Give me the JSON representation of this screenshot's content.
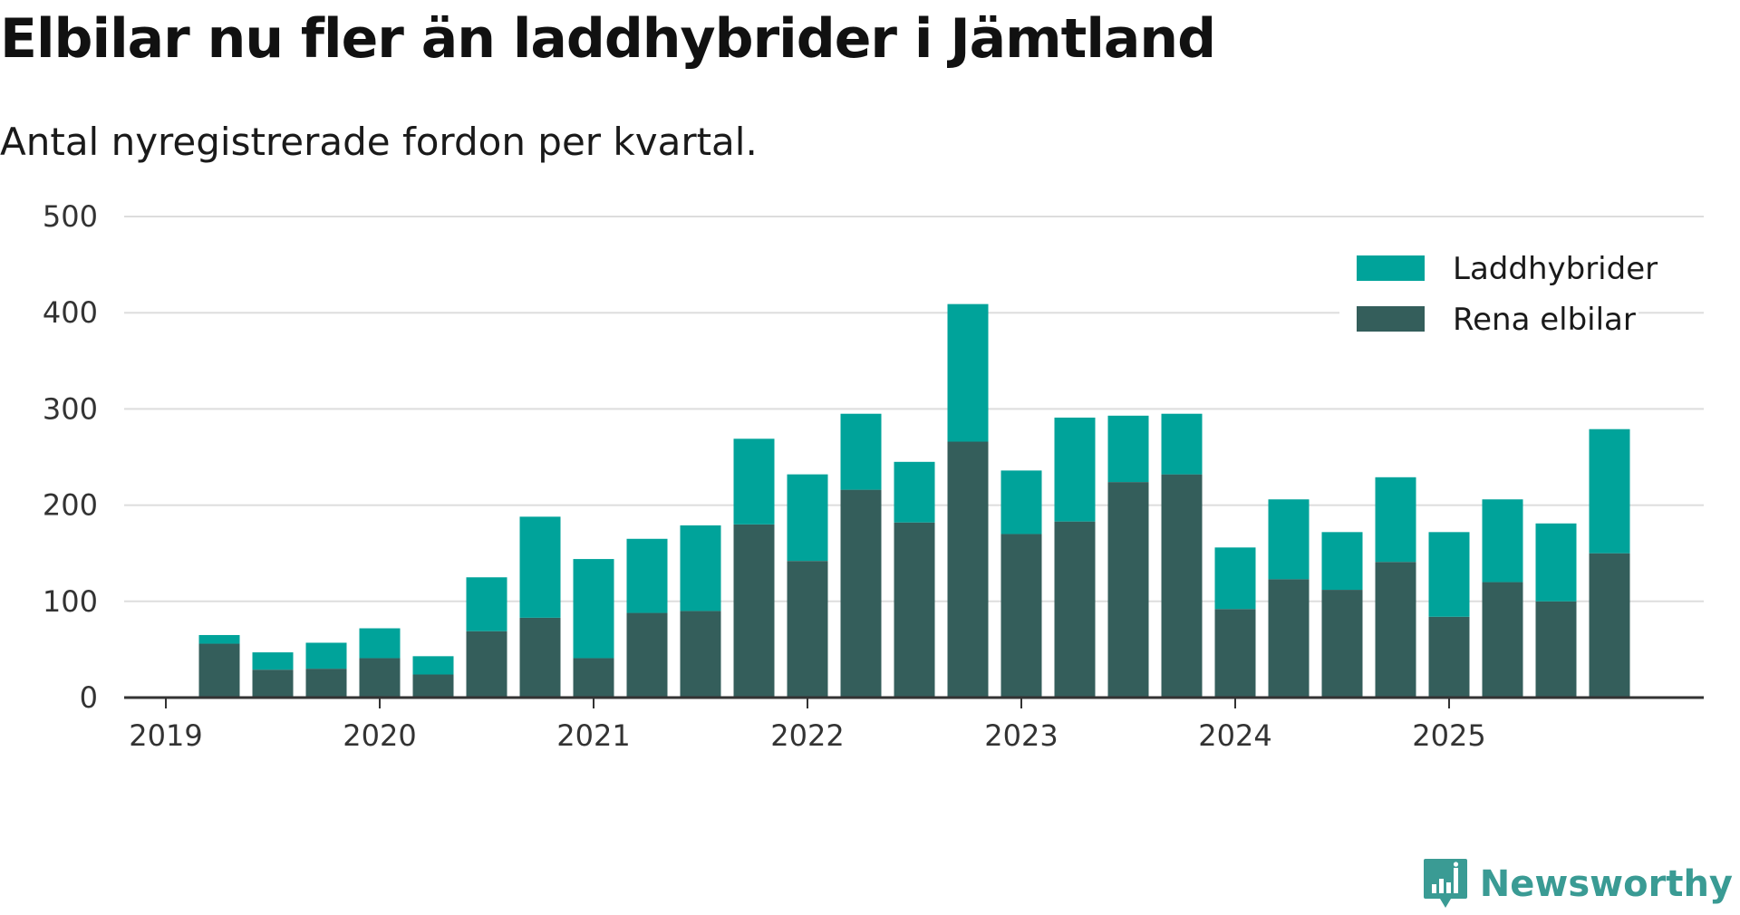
{
  "title": "Elbilar nu fler än laddhybrider i Jämtland",
  "subtitle": "Antal nyregistrerade fordon per kvartal.",
  "brand": "Newsworthy",
  "colors": {
    "laddhybrider": "#00a39a",
    "elbilar": "#345e5b",
    "grid": "#dddddd",
    "axis": "#333333",
    "brand": "#3a9b94"
  },
  "chart_data": {
    "type": "bar",
    "stacked": true,
    "title": "Elbilar nu fler än laddhybrider i Jämtland",
    "subtitle": "Antal nyregistrerade fordon per kvartal.",
    "ylim": [
      0,
      500
    ],
    "yticks": [
      0,
      100,
      200,
      300,
      400,
      500
    ],
    "xtick_labels": [
      "2019",
      "2020",
      "2021",
      "2022",
      "2023",
      "2024",
      "2025"
    ],
    "categories": [
      "2019 Q2",
      "2019 Q3",
      "2019 Q4",
      "2020 Q1",
      "2020 Q2",
      "2020 Q3",
      "2020 Q4",
      "2021 Q1",
      "2021 Q2",
      "2021 Q3",
      "2021 Q4",
      "2022 Q1",
      "2022 Q2",
      "2022 Q3",
      "2022 Q4",
      "2023 Q1",
      "2023 Q2",
      "2023 Q3",
      "2023 Q4",
      "2024 Q1",
      "2024 Q2",
      "2024 Q3",
      "2024 Q4",
      "2025 Q1",
      "2025 Q2",
      "2025 Q3",
      "2025 Q4"
    ],
    "series": [
      {
        "name": "Rena elbilar",
        "values": [
          56,
          29,
          30,
          41,
          24,
          69,
          83,
          41,
          88,
          90,
          180,
          142,
          216,
          182,
          266,
          170,
          183,
          224,
          232,
          92,
          123,
          112,
          141,
          84,
          120,
          100,
          150
        ]
      },
      {
        "name": "Laddhybrider",
        "values": [
          9,
          18,
          27,
          31,
          19,
          56,
          105,
          103,
          77,
          89,
          89,
          90,
          79,
          63,
          143,
          66,
          108,
          69,
          63,
          64,
          83,
          60,
          88,
          88,
          86,
          81,
          129
        ]
      }
    ],
    "legend": [
      "Laddhybrider",
      "Rena elbilar"
    ],
    "legend_position": "top-right",
    "grid": true
  }
}
